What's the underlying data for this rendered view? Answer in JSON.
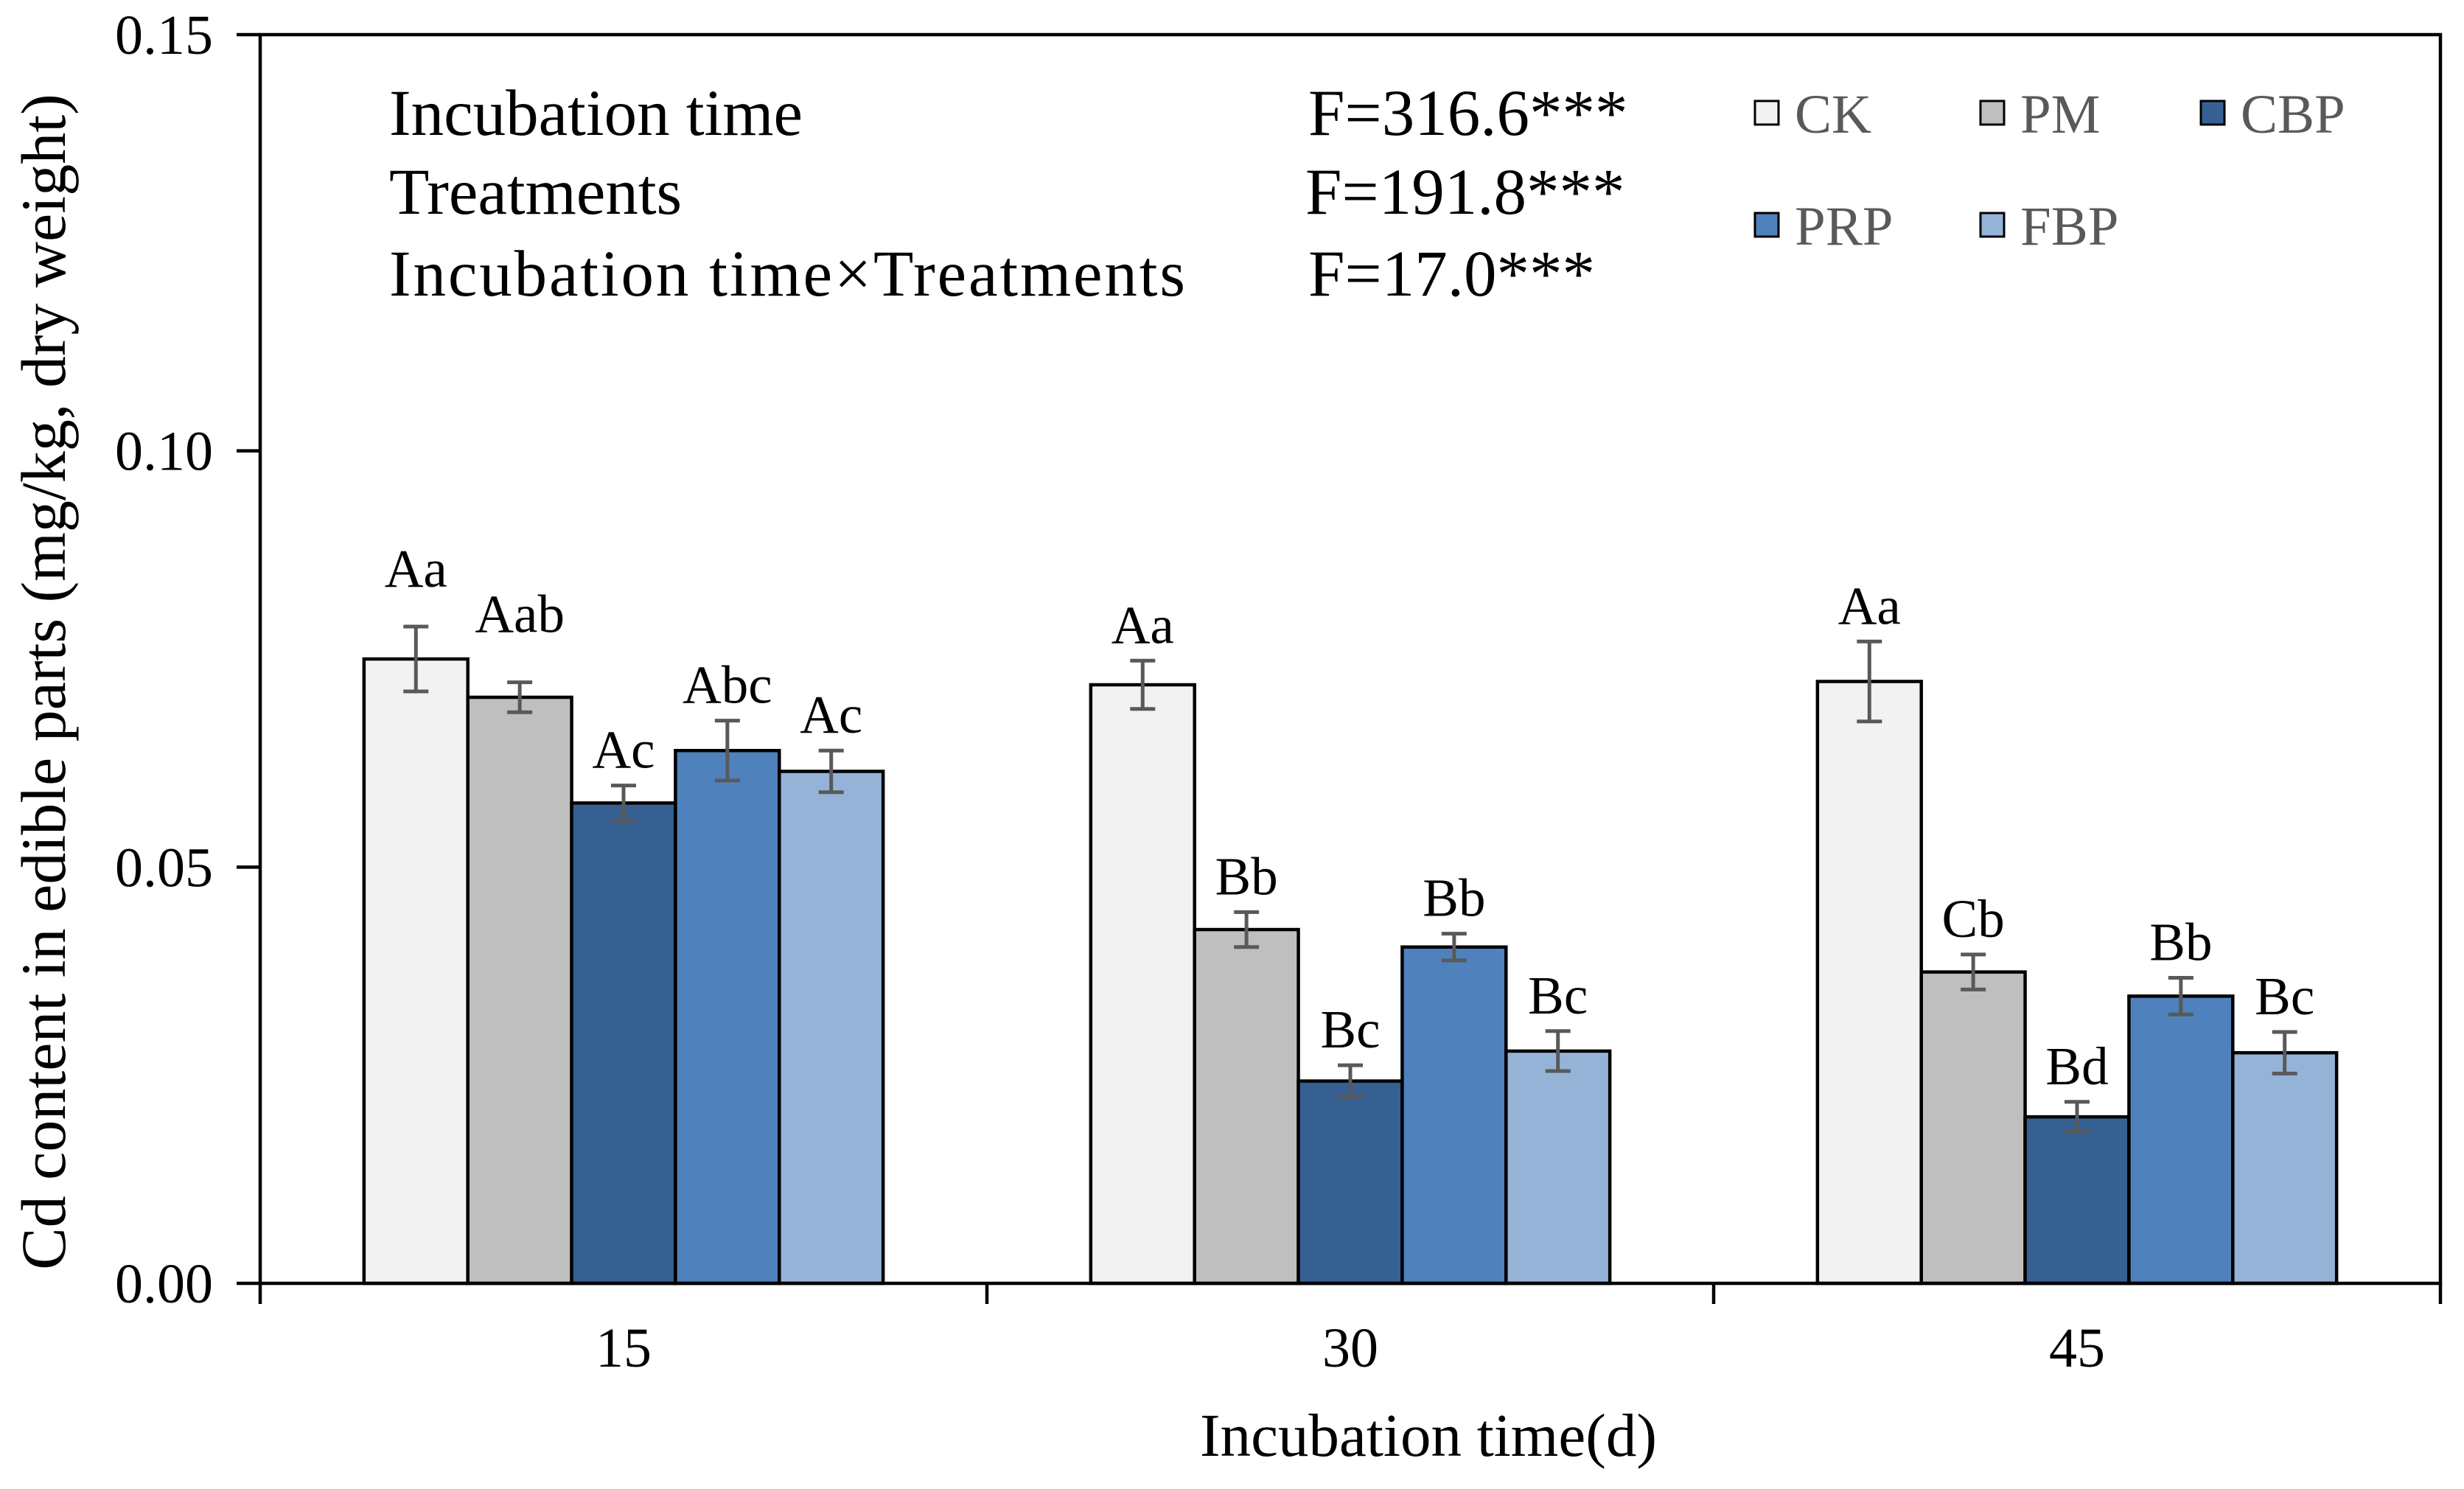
{
  "chart_data": {
    "type": "bar",
    "xlabel": "Incubation time(d)",
    "ylabel": "Cd content in edible parts (mg/kg, dry weight)",
    "ylim": [
      0,
      0.15
    ],
    "y_ticks": [
      0,
      0.05,
      0.1,
      0.15
    ],
    "y_tick_labels": [
      "0.00",
      "0.05",
      "0.10",
      "0.15"
    ],
    "categories": [
      "15",
      "30",
      "45"
    ],
    "grid": false,
    "series": [
      {
        "name": "CK",
        "color": "#F2F2F2",
        "values": [
          0.075,
          0.0719,
          0.0723
        ],
        "errors": [
          0.0039,
          0.0029,
          0.0048
        ],
        "labels": [
          "Aa",
          "Aa",
          "Aa"
        ]
      },
      {
        "name": "PM",
        "color": "#BFBFBF",
        "values": [
          0.0704,
          0.0425,
          0.0374
        ],
        "errors": [
          0.0018,
          0.0021,
          0.0021
        ],
        "labels": [
          "Aab",
          "Bb",
          "Cb"
        ]
      },
      {
        "name": "CBP",
        "color": "#376092",
        "values": [
          0.0577,
          0.0243,
          0.02
        ],
        "errors": [
          0.0021,
          0.0019,
          0.0018
        ],
        "labels": [
          "Ac",
          "Bc",
          "Bd"
        ]
      },
      {
        "name": "PRP",
        "color": "#4F81BD",
        "values": [
          0.064,
          0.0404,
          0.0345
        ],
        "errors": [
          0.0036,
          0.0016,
          0.0022
        ],
        "labels": [
          "Abc",
          "Bb",
          "Bb"
        ]
      },
      {
        "name": "FBP",
        "color": "#95B3D7",
        "values": [
          0.0615,
          0.0279,
          0.0277
        ],
        "errors": [
          0.0025,
          0.0024,
          0.0025
        ],
        "labels": [
          "Ac",
          "Bc",
          "Bc"
        ]
      }
    ],
    "annotations": [
      {
        "factor": "Incubation time",
        "f_value": "F=316.6***"
      },
      {
        "factor": "Treatments",
        "f_value": "F=191.8***"
      },
      {
        "factor": "Incubation time×Treatments",
        "f_value": "F=17.0***"
      }
    ],
    "error_bar_color": "#595959",
    "legend_text_color": "#595959"
  }
}
